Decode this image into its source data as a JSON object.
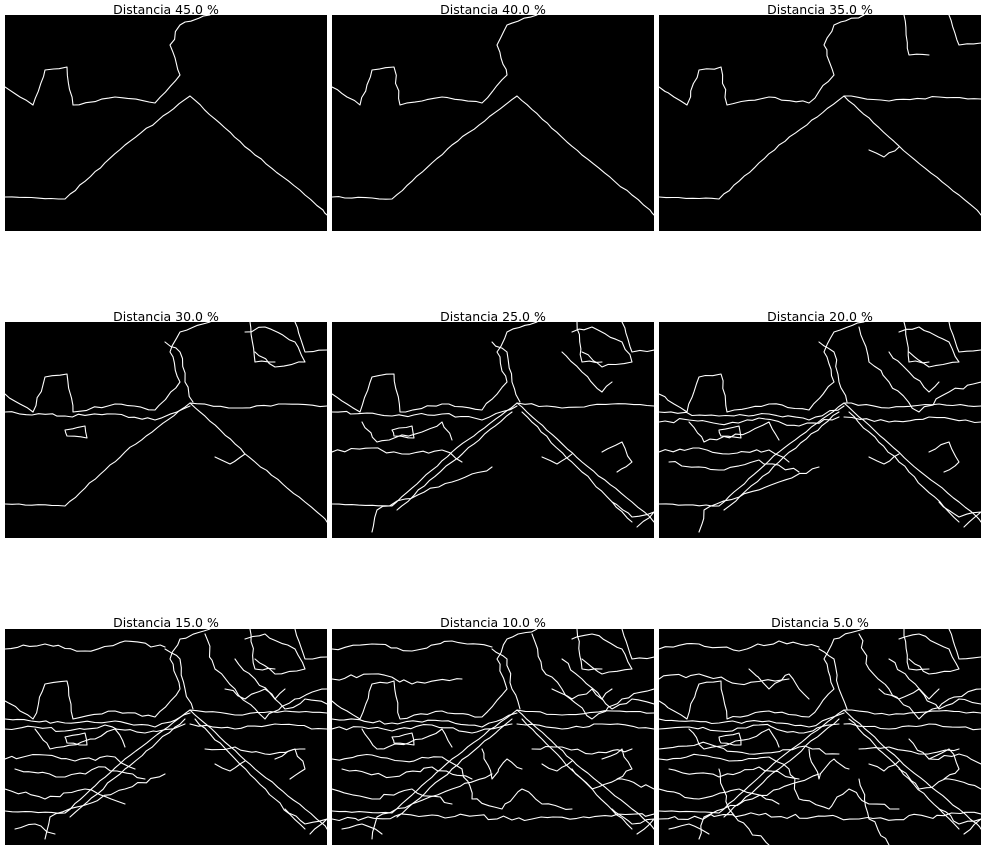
{
  "figure": {
    "panels": [
      {
        "title": "Distancia 45.0 %",
        "detail": 0
      },
      {
        "title": "Distancia 40.0 %",
        "detail": 0
      },
      {
        "title": "Distancia 35.0 %",
        "detail": 1
      },
      {
        "title": "Distancia 30.0 %",
        "detail": 2
      },
      {
        "title": "Distancia 25.0 %",
        "detail": 3
      },
      {
        "title": "Distancia 20.0 %",
        "detail": 4
      },
      {
        "title": "Distancia 15.0 %",
        "detail": 5
      },
      {
        "title": "Distancia 10.0 %",
        "detail": 6
      },
      {
        "title": "Distancia 5.0 %",
        "detail": 7
      }
    ],
    "colors": {
      "background": "#000000",
      "edges": "#ffffff",
      "page": "#ffffff"
    }
  }
}
